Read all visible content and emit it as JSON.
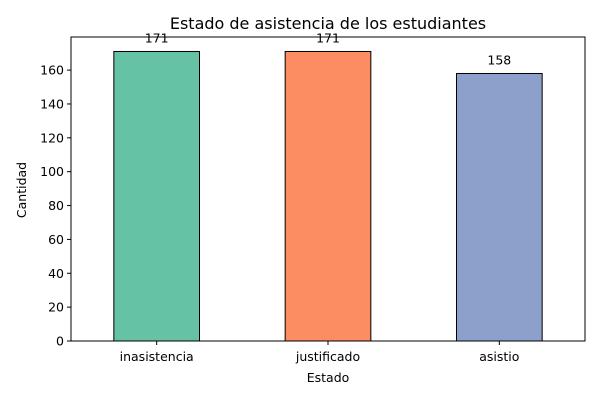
{
  "chart_data": {
    "type": "bar",
    "title": "Estado de asistencia de los estudiantes",
    "xlabel": "Estado",
    "ylabel": "Cantidad",
    "categories": [
      "inasistencia",
      "justificado",
      "asistio"
    ],
    "values": [
      171,
      171,
      158
    ],
    "data_labels": [
      "171",
      "171",
      "158"
    ],
    "colors": [
      "#66c2a5",
      "#fc8d62",
      "#8da0cb"
    ],
    "edge_color": "#000000",
    "ylim": [
      0,
      179.55
    ],
    "yticks": [
      0,
      20,
      40,
      60,
      80,
      100,
      120,
      140,
      160
    ],
    "grid": false,
    "legend": "none"
  }
}
